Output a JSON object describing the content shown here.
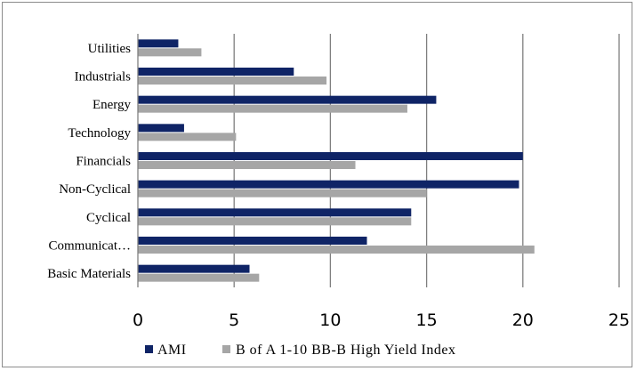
{
  "chart_data": {
    "type": "bar",
    "orientation": "horizontal",
    "title": "",
    "xlabel": "",
    "ylabel": "",
    "categories": [
      "Utilities",
      "Industrials",
      "Energy",
      "Technology",
      "Financials",
      "Non-Cyclical",
      "Cyclical",
      "Communicat…",
      "Basic Materials"
    ],
    "series": [
      {
        "name": "AMI",
        "color": "#0f2466",
        "values": [
          2.1,
          8.1,
          15.5,
          2.4,
          20.0,
          19.8,
          14.2,
          11.9,
          5.8
        ]
      },
      {
        "name": "B of A 1-10 BB-B High Yield Index",
        "color": "#a6a6a6",
        "values": [
          3.3,
          9.8,
          14.0,
          5.1,
          11.3,
          15.0,
          14.2,
          20.6,
          6.3
        ]
      }
    ],
    "xlim": [
      0,
      25
    ],
    "xticks": [
      "0",
      "5",
      "10",
      "15",
      "20",
      "25"
    ],
    "grid": true,
    "legend_position": "bottom"
  }
}
